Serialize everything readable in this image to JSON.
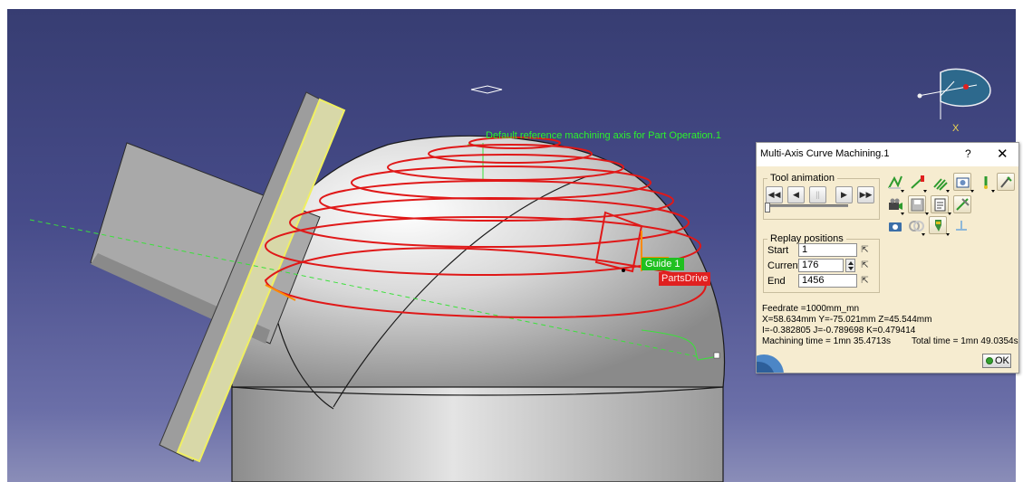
{
  "viewport": {
    "background_top": "#373d72",
    "background_bottom": "#8a8db8",
    "axis_label": "Default reference machining axis for Part Operation.1",
    "guide_tag": "Guide 1",
    "parts_tag": "PartsDrive",
    "compass_axis": "X",
    "colors": {
      "toolpath": "#e01818",
      "axis_label": "#2cf22c",
      "tag_green": "#20c020",
      "tag_red": "#e02020"
    }
  },
  "dialog": {
    "title": "Multi-Axis Curve Machining.1",
    "help": "?",
    "close": "✕",
    "tool_animation": {
      "legend": "Tool animation",
      "buttons": [
        {
          "name": "rewind-button",
          "glyph": "◀◀"
        },
        {
          "name": "step-back-button",
          "glyph": "◀"
        },
        {
          "name": "pause-button",
          "glyph": "||"
        },
        {
          "name": "step-forward-button",
          "glyph": "▶"
        },
        {
          "name": "fast-forward-button",
          "glyph": "▶▶"
        }
      ]
    },
    "replay_positions": {
      "legend": "Replay positions",
      "start_label": "Start",
      "start_value": "1",
      "current_label": "Current",
      "current_value": "176",
      "end_label": "End",
      "end_value": "1456",
      "pick_glyph": "⇱"
    },
    "info": {
      "feedrate": "Feedrate =1000mm_mn",
      "position": "X=58.634mm Y=-75.021mm Z=45.544mm",
      "orientation": "I=-0.382805 J=-0.789698 K=0.479414",
      "machining_time": "Machining time = 1mn 35.4713s",
      "total_time": "Total time = 1mn 49.0354s"
    },
    "ok_label": "OK",
    "icon_toolbar": [
      "display-tool-path-icon",
      "display-tool-icon",
      "display-multi-path-icon",
      "video-mode-icon",
      "point-icon",
      "settings-icon",
      "camera-icon",
      "save-icon",
      "report-icon",
      "tool-color-icon",
      "photo-icon",
      "analysis-icon",
      "tool-holder-icon",
      "feedrate-icon"
    ]
  }
}
